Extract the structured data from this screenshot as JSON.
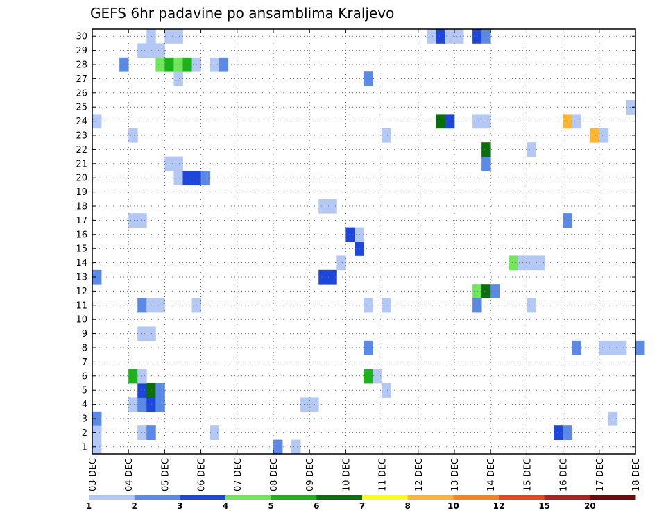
{
  "chart_data": {
    "type": "heatmap",
    "title": "GEFS 6hr padavine po ansamblima Kraljevo",
    "x_tick_labels": [
      "03 DEC",
      "04 DEC",
      "05 DEC",
      "06 DEC",
      "07 DEC",
      "08 DEC",
      "09 DEC",
      "10 DEC",
      "11 DEC",
      "12 DEC",
      "13 DEC",
      "14 DEC",
      "15 DEC",
      "16 DEC",
      "17 DEC",
      "18 DEC"
    ],
    "x_range_days": [
      0,
      15
    ],
    "time_step_hours": 6,
    "y_tick_labels": [
      "1",
      "2",
      "3",
      "4",
      "5",
      "6",
      "7",
      "8",
      "9",
      "10",
      "11",
      "12",
      "13",
      "14",
      "15",
      "16",
      "17",
      "18",
      "19",
      "20",
      "21",
      "22",
      "23",
      "24",
      "25",
      "26",
      "27",
      "28",
      "29",
      "30"
    ],
    "y_range": [
      0.5,
      30.5
    ],
    "grid": true,
    "grid_style": "dotted",
    "colorbar": {
      "position": "bottom",
      "boundaries": [
        1,
        2,
        3,
        4,
        5,
        6,
        7,
        8,
        10,
        12,
        15,
        20
      ],
      "labels": [
        "1",
        "2",
        "3",
        "4",
        "5",
        "6",
        "7",
        "8",
        "10",
        "12",
        "15",
        "20"
      ],
      "colors": [
        "#b4c8f5",
        "#5a8ae6",
        "#1c46dc",
        "#72e65a",
        "#1ab41a",
        "#0a6e0a",
        "#ffff14",
        "#ffb432",
        "#ff8214",
        "#e6461e",
        "#b41e1e",
        "#6e0a0a"
      ]
    },
    "cells_note": "each cell: [member, timestep_index, color_class]; timestep 0 = 03 DEC 00z, 4 steps per day",
    "cells": [
      [
        1,
        0,
        1
      ],
      [
        1,
        20,
        2
      ],
      [
        1,
        22,
        1
      ],
      [
        2,
        0,
        1
      ],
      [
        2,
        5,
        1
      ],
      [
        2,
        6,
        2
      ],
      [
        2,
        13,
        1
      ],
      [
        2,
        51,
        3
      ],
      [
        2,
        52,
        2
      ],
      [
        3,
        0,
        2
      ],
      [
        3,
        57,
        1
      ],
      [
        4,
        4,
        1
      ],
      [
        4,
        5,
        2
      ],
      [
        4,
        6,
        3
      ],
      [
        4,
        7,
        2
      ],
      [
        4,
        23,
        1
      ],
      [
        4,
        24,
        1
      ],
      [
        5,
        5,
        3
      ],
      [
        5,
        6,
        6
      ],
      [
        5,
        7,
        2
      ],
      [
        5,
        32,
        1
      ],
      [
        6,
        4,
        5
      ],
      [
        6,
        5,
        1
      ],
      [
        6,
        30,
        5
      ],
      [
        6,
        31,
        1
      ],
      [
        8,
        30,
        2
      ],
      [
        8,
        53,
        2
      ],
      [
        8,
        56,
        1
      ],
      [
        8,
        57,
        1
      ],
      [
        8,
        58,
        1
      ],
      [
        8,
        60,
        2
      ],
      [
        9,
        5,
        1
      ],
      [
        9,
        6,
        1
      ],
      [
        11,
        5,
        2
      ],
      [
        11,
        6,
        1
      ],
      [
        11,
        7,
        1
      ],
      [
        11,
        11,
        1
      ],
      [
        11,
        30,
        1
      ],
      [
        11,
        32,
        1
      ],
      [
        11,
        42,
        2
      ],
      [
        11,
        48,
        1
      ],
      [
        12,
        42,
        4
      ],
      [
        12,
        43,
        6
      ],
      [
        12,
        44,
        2
      ],
      [
        13,
        0,
        2
      ],
      [
        13,
        25,
        3
      ],
      [
        13,
        26,
        3
      ],
      [
        14,
        27,
        1
      ],
      [
        14,
        46,
        4
      ],
      [
        14,
        47,
        1
      ],
      [
        14,
        48,
        1
      ],
      [
        14,
        49,
        1
      ],
      [
        15,
        29,
        3
      ],
      [
        16,
        28,
        3
      ],
      [
        16,
        29,
        1
      ],
      [
        17,
        4,
        1
      ],
      [
        17,
        5,
        1
      ],
      [
        17,
        52,
        2
      ],
      [
        18,
        25,
        1
      ],
      [
        18,
        26,
        1
      ],
      [
        20,
        9,
        1
      ],
      [
        20,
        10,
        3
      ],
      [
        20,
        11,
        3
      ],
      [
        20,
        12,
        2
      ],
      [
        21,
        8,
        1
      ],
      [
        21,
        9,
        1
      ],
      [
        21,
        43,
        2
      ],
      [
        22,
        43,
        6
      ],
      [
        22,
        48,
        1
      ],
      [
        23,
        4,
        1
      ],
      [
        23,
        32,
        1
      ],
      [
        23,
        55,
        8
      ],
      [
        23,
        56,
        1
      ],
      [
        24,
        0,
        1
      ],
      [
        24,
        38,
        6
      ],
      [
        24,
        39,
        3
      ],
      [
        24,
        42,
        1
      ],
      [
        24,
        43,
        1
      ],
      [
        24,
        52,
        8
      ],
      [
        24,
        53,
        1
      ],
      [
        25,
        59,
        1
      ],
      [
        27,
        9,
        1
      ],
      [
        27,
        30,
        2
      ],
      [
        28,
        3,
        2
      ],
      [
        28,
        7,
        4
      ],
      [
        28,
        8,
        5
      ],
      [
        28,
        9,
        4
      ],
      [
        28,
        10,
        5
      ],
      [
        28,
        11,
        1
      ],
      [
        28,
        13,
        1
      ],
      [
        28,
        14,
        2
      ],
      [
        29,
        5,
        1
      ],
      [
        29,
        6,
        1
      ],
      [
        29,
        7,
        1
      ],
      [
        30,
        6,
        1
      ],
      [
        30,
        8,
        1
      ],
      [
        30,
        9,
        1
      ],
      [
        30,
        37,
        1
      ],
      [
        30,
        38,
        3
      ],
      [
        30,
        39,
        1
      ],
      [
        30,
        40,
        1
      ],
      [
        30,
        42,
        3
      ],
      [
        30,
        43,
        2
      ]
    ]
  }
}
